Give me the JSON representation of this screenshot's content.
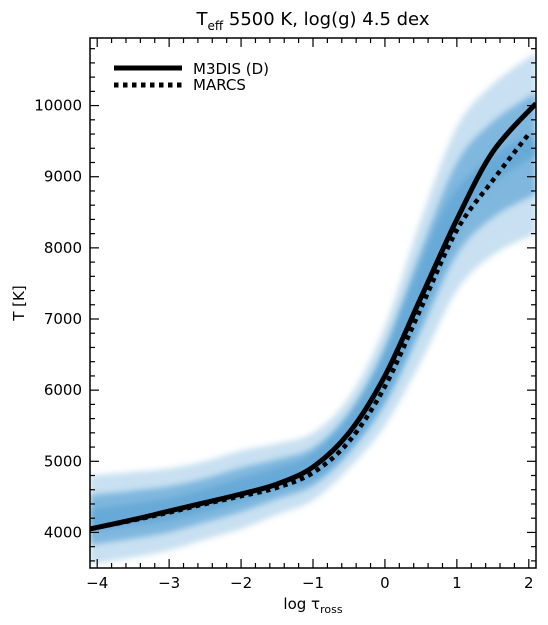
{
  "chart_data": {
    "type": "line",
    "title": {
      "main": "T",
      "sub": "eff",
      "rest": " 5500 K, log(g) 4.5 dex"
    },
    "xlabel": {
      "main": "log τ",
      "sub": "ross"
    },
    "ylabel": "T [K]",
    "xlim": [
      -4.1,
      2.1
    ],
    "ylim": [
      3500,
      10950
    ],
    "x_major_ticks": [
      -4,
      -3,
      -2,
      -1,
      0,
      1,
      2
    ],
    "x_tick_labels": [
      "−4",
      "−3",
      "−2",
      "−1",
      "0",
      "1",
      "2"
    ],
    "y_major_ticks": [
      4000,
      5000,
      6000,
      7000,
      8000,
      9000,
      10000
    ],
    "y_tick_labels": [
      "4000",
      "5000",
      "6000",
      "7000",
      "8000",
      "9000",
      "10000"
    ],
    "legend_position": "top-left",
    "colors": {
      "band": "#3a8fcc",
      "line": "#000000"
    },
    "series": [
      {
        "name": "M3DIS (D)",
        "style": "solid",
        "x": [
          -4.1,
          -3.5,
          -3.0,
          -2.5,
          -2.0,
          -1.5,
          -1.0,
          -0.5,
          0.0,
          0.5,
          1.0,
          1.5,
          2.1
        ],
        "y": [
          4050,
          4180,
          4300,
          4420,
          4540,
          4680,
          4920,
          5400,
          6200,
          7300,
          8400,
          9350,
          10030
        ]
      },
      {
        "name": "MARCS",
        "style": "dotted",
        "x": [
          -4.1,
          -3.5,
          -3.0,
          -2.5,
          -2.0,
          -1.5,
          -1.0,
          -0.5,
          0.0,
          0.5,
          1.0,
          1.5,
          2.0
        ],
        "y": [
          4050,
          4170,
          4280,
          4400,
          4510,
          4630,
          4840,
          5280,
          6050,
          7150,
          8250,
          8950,
          9600
        ]
      }
    ],
    "distribution_band": {
      "x": [
        -4.1,
        -3.5,
        -3.0,
        -2.5,
        -2.0,
        -1.5,
        -1.0,
        -0.5,
        0.0,
        0.5,
        1.0,
        1.5,
        2.1
      ],
      "lower": [
        3550,
        3650,
        3750,
        3900,
        4050,
        4250,
        4450,
        4900,
        5500,
        6400,
        7400,
        7900,
        8200
      ],
      "upper": [
        4800,
        4850,
        4900,
        5000,
        5150,
        5250,
        5400,
        5900,
        6900,
        8400,
        9700,
        10300,
        10750
      ]
    }
  }
}
